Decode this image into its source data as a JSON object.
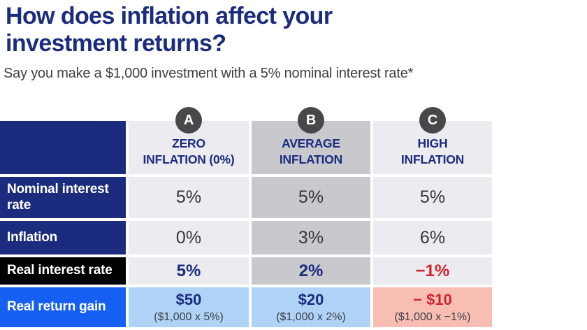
{
  "header": {
    "title": "How does inflation affect your investment returns?",
    "subtitle": "Say you make a $1,000 investment with a 5% nominal interest rate*"
  },
  "table": {
    "columns": [
      {
        "badge": "A",
        "line1": "ZERO",
        "line2": "INFLATION (0%)"
      },
      {
        "badge": "B",
        "line1": "AVERAGE",
        "line2": "INFLATION"
      },
      {
        "badge": "C",
        "line1": "HIGH",
        "line2": "INFLATION"
      }
    ],
    "rows": [
      {
        "label": "Nominal interest rate",
        "values": [
          "5%",
          "5%",
          "5%"
        ]
      },
      {
        "label": "Inflation",
        "values": [
          "0%",
          "3%",
          "6%"
        ]
      },
      {
        "label": "Real interest rate",
        "values": [
          "5%",
          "2%",
          "−1%"
        ]
      },
      {
        "label": "Real return gain",
        "values": [
          {
            "main": "$50",
            "sub": "($1,000 x 5%)"
          },
          {
            "main": "$20",
            "sub": "($1,000 x 2%)"
          },
          {
            "main": "− $10",
            "sub": "($1,000 x −1%)"
          }
        ]
      }
    ]
  },
  "colors": {
    "navy": "#1b2c7e",
    "black_row": "#000000",
    "bright_blue_row": "#1560f2",
    "light_gray_cell": "#ececf0",
    "mid_gray_cell": "#c8c8cd",
    "light_blue_cell": "#aed3f7",
    "pink_cell": "#f8bdb3",
    "red_text": "#d2232e",
    "badge_gray": "#48484a",
    "value_text": "#35353b",
    "subtitle_text": "#3f4043"
  },
  "chart_data": {
    "type": "table",
    "title": "How does inflation affect your investment returns?",
    "subtitle": "Say you make a $1,000 investment with a 5% nominal interest rate*",
    "columns": [
      "ZERO INFLATION (0%)",
      "AVERAGE INFLATION",
      "HIGH INFLATION"
    ],
    "rows": [
      {
        "label": "Nominal interest rate",
        "values": [
          "5%",
          "5%",
          "5%"
        ]
      },
      {
        "label": "Inflation",
        "values": [
          "0%",
          "3%",
          "6%"
        ]
      },
      {
        "label": "Real interest rate",
        "values": [
          "5%",
          "2%",
          "−1%"
        ]
      },
      {
        "label": "Real return gain",
        "values": [
          "$50 ($1,000 x 5%)",
          "$20 ($1,000 x 2%)",
          "− $10 ($1,000 x −1%)"
        ]
      }
    ]
  }
}
